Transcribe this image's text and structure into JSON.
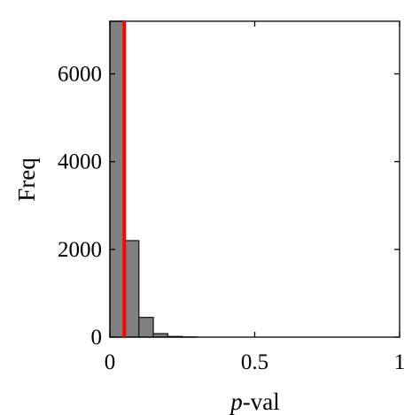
{
  "chart_data": {
    "type": "bar",
    "title": "",
    "xlabel": {
      "italic": "p",
      "rest": "-val"
    },
    "ylabel": "Freq",
    "xlim": [
      0,
      1
    ],
    "ylim": [
      0,
      7200
    ],
    "x_ticks": [
      {
        "value": 0,
        "label": "0"
      },
      {
        "value": 0.5,
        "label": "0.5"
      },
      {
        "value": 1,
        "label": "1"
      }
    ],
    "y_ticks": [
      {
        "value": 0,
        "label": "0"
      },
      {
        "value": 2000,
        "label": "2000"
      },
      {
        "value": 4000,
        "label": "4000"
      },
      {
        "value": 6000,
        "label": "6000"
      }
    ],
    "bins": [
      {
        "start": 0.0,
        "end": 0.05,
        "count": 7250
      },
      {
        "start": 0.05,
        "end": 0.1,
        "count": 2200
      },
      {
        "start": 0.1,
        "end": 0.15,
        "count": 450
      },
      {
        "start": 0.15,
        "end": 0.2,
        "count": 80
      },
      {
        "start": 0.2,
        "end": 0.25,
        "count": 15
      },
      {
        "start": 0.25,
        "end": 0.3,
        "count": 3
      }
    ],
    "threshold": 0.05,
    "bar_color": "#808080",
    "bar_edge_color": "#1a1a1a",
    "threshold_color": "#ff0000",
    "grid": false
  }
}
